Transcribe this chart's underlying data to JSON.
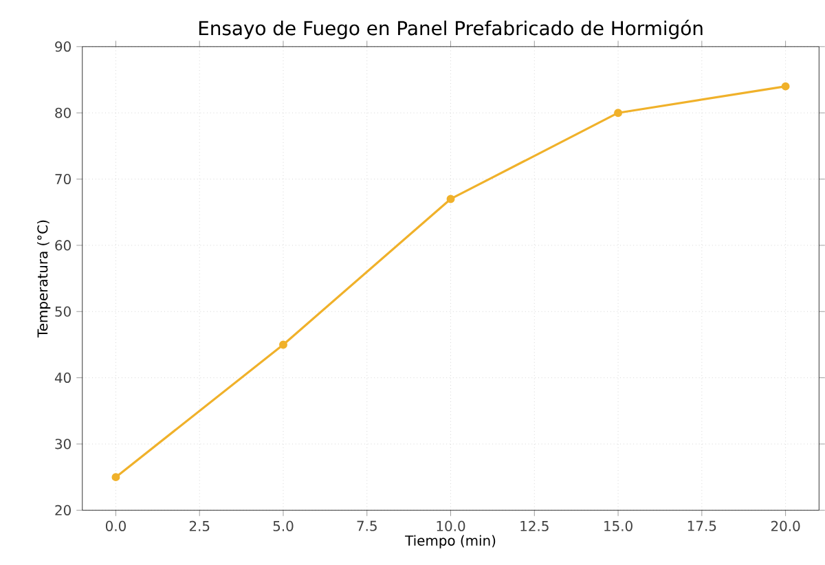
{
  "chart_data": {
    "type": "line",
    "title": "Ensayo de Fuego en Panel Prefabricado de Hormigón",
    "xlabel": "Tiempo (min)",
    "ylabel": "Temperatura (°C)",
    "x": [
      0,
      5,
      10,
      15,
      20
    ],
    "series": [
      {
        "color": "#f0b12a",
        "values": [
          25,
          45,
          67,
          80,
          84
        ]
      }
    ],
    "xlim": [
      -1,
      21
    ],
    "ylim": [
      20,
      90
    ],
    "xticks": [
      {
        "value": 0,
        "label": "0.0"
      },
      {
        "value": 2.5,
        "label": "2.5"
      },
      {
        "value": 5,
        "label": "5.0"
      },
      {
        "value": 7.5,
        "label": "7.5"
      },
      {
        "value": 10,
        "label": "10.0"
      },
      {
        "value": 12.5,
        "label": "12.5"
      },
      {
        "value": 15,
        "label": "15.0"
      },
      {
        "value": 17.5,
        "label": "17.5"
      },
      {
        "value": 20,
        "label": "20.0"
      }
    ],
    "yticks": [
      20,
      30,
      40,
      50,
      60,
      70,
      80,
      90
    ],
    "grid": true,
    "marker": "circle",
    "line_style": "solid"
  }
}
